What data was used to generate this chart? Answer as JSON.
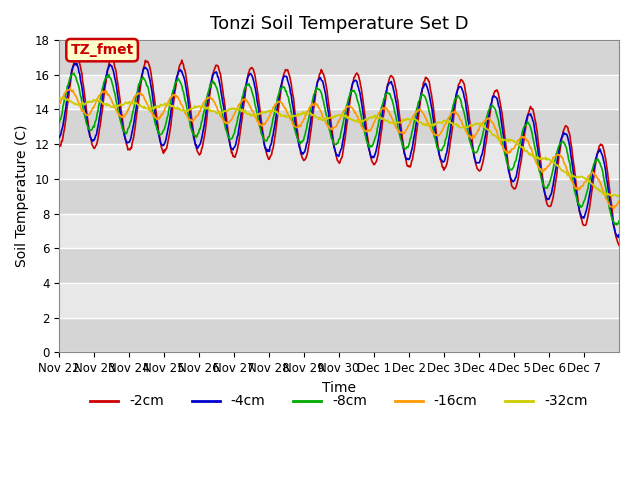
{
  "title": "Tonzi Soil Temperature Set D",
  "xlabel": "Time",
  "ylabel": "Soil Temperature (C)",
  "ylim": [
    0,
    18
  ],
  "yticks": [
    0,
    2,
    4,
    6,
    8,
    10,
    12,
    14,
    16,
    18
  ],
  "x_tick_labels": [
    "Nov 22",
    "Nov 23",
    "Nov 24",
    "Nov 25",
    "Nov 26",
    "Nov 27",
    "Nov 28",
    "Nov 29",
    "Nov 30",
    "Dec 1",
    "Dec 2",
    "Dec 3",
    "Dec 4",
    "Dec 5",
    "Dec 6",
    "Dec 7"
  ],
  "legend_labels": [
    "-2cm",
    "-4cm",
    "-8cm",
    "-16cm",
    "-32cm"
  ],
  "line_colors": [
    "#cc0000",
    "#0000cc",
    "#00aa00",
    "#ff9900",
    "#cccc00"
  ],
  "annotation_text": "TZ_fmet",
  "annotation_color": "#cc0000",
  "annotation_bg": "#ffffcc",
  "title_fontsize": 13,
  "label_fontsize": 10,
  "tick_fontsize": 8.5,
  "n_days": 16
}
